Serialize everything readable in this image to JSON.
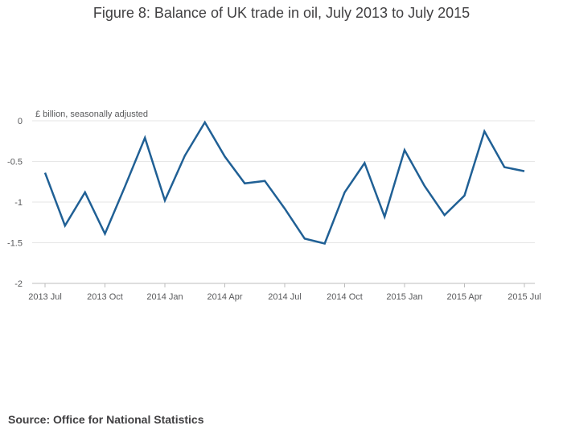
{
  "chart_data": {
    "type": "line",
    "title": "Figure 8: Balance of UK trade in oil, July 2013 to July 2015",
    "ylabel": "£ billion, seasonally adjusted",
    "xlabel": "",
    "source": "Source: Office for National Statistics",
    "ylim": [
      -2,
      0
    ],
    "yticks": [
      "0",
      "-0.5",
      "-1",
      "-1.5",
      "-2"
    ],
    "ytick_values": [
      0,
      -0.5,
      -1,
      -1.5,
      -2
    ],
    "xtick_labels": [
      "2013 Jul",
      "2013 Oct",
      "2014 Jan",
      "2014 Apr",
      "2014 Jul",
      "2014 Oct",
      "2015 Jan",
      "2015 Apr",
      "2015 Jul"
    ],
    "xtick_index": [
      0,
      3,
      6,
      9,
      12,
      15,
      18,
      21,
      24
    ],
    "grid": true,
    "color": "#206095",
    "series": [
      {
        "values": [
          -0.64,
          -1.29,
          -0.88,
          -1.39,
          -0.81,
          -0.21,
          -0.98,
          -0.43,
          -0.02,
          -0.44,
          -0.77,
          -0.74,
          -1.08,
          -1.45,
          -1.51,
          -0.88,
          -0.52,
          -1.18,
          -0.36,
          -0.8,
          -1.16,
          -0.92,
          -0.13,
          -0.57,
          -0.62
        ]
      }
    ]
  }
}
